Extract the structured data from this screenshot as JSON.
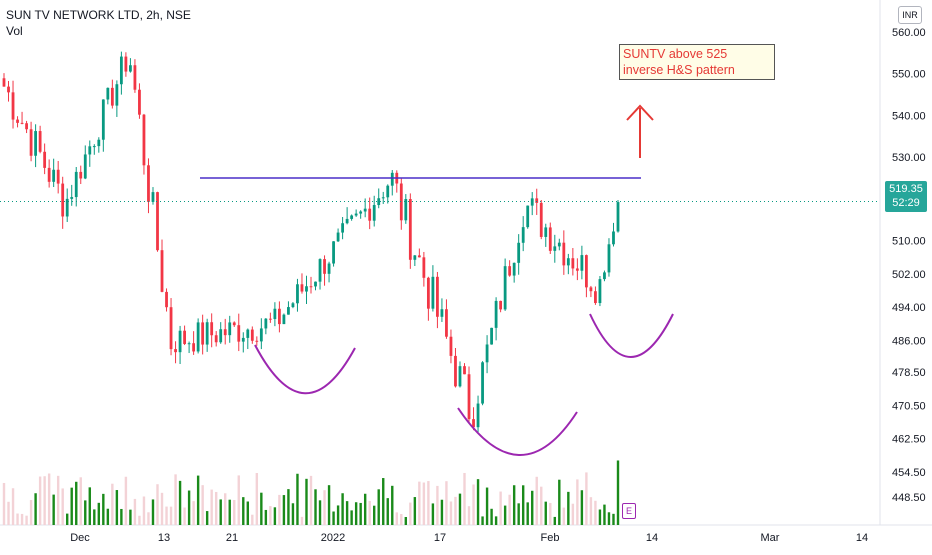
{
  "header": {
    "title": "SUN TV NETWORK LTD, 2h, NSE",
    "volume_label": "Vol",
    "currency": "INR"
  },
  "price_tag": {
    "price": "519.35",
    "countdown": "52:29"
  },
  "annotation": {
    "line1": "SUNTV above 525",
    "line2": "inverse H&S pattern",
    "neckline_price": 525
  },
  "marker": {
    "label": "E"
  },
  "colors": {
    "up": "#089981",
    "down": "#f23645",
    "volume_up": "#1a8a1a",
    "volume_down": "#f3d2d6",
    "neckline": "#4a2fc9",
    "curve": "#9c27b0",
    "arrow": "#e53935",
    "annotation_bg": "#fffde7"
  },
  "chart_data": {
    "type": "candlestick",
    "y_axis": {
      "ticks": [
        "560.00",
        "550.00",
        "540.00",
        "530.00",
        "520.00",
        "510.00",
        "502.00",
        "494.00",
        "486.00",
        "478.50",
        "470.50",
        "462.50",
        "454.50",
        "448.50"
      ]
    },
    "x_axis": {
      "ticks": [
        "Dec",
        "13",
        "21",
        "2022",
        "17",
        "Feb",
        "14",
        "Mar",
        "14"
      ]
    },
    "candles_summary": [
      {
        "seg": "early-dec",
        "start": 547,
        "end": 520,
        "noise": 5
      },
      {
        "seg": "mid-dec",
        "start": 520,
        "end": 553,
        "noise": 4
      },
      {
        "seg": "drop",
        "start": 553,
        "end": 486,
        "noise": 6
      },
      {
        "seg": "left-shoulder",
        "start": 486,
        "end": 490,
        "noise": 4
      },
      {
        "seg": "rise-2022",
        "start": 490,
        "end": 524,
        "noise": 4
      },
      {
        "seg": "head-drop",
        "start": 524,
        "end": 470,
        "noise": 6
      },
      {
        "seg": "head-rise",
        "start": 470,
        "end": 518,
        "noise": 5
      },
      {
        "seg": "right-shoulder",
        "start": 518,
        "end": 500,
        "noise": 5
      },
      {
        "seg": "breakout",
        "start": 500,
        "end": 519.35,
        "noise": 3
      }
    ],
    "last_price": 519.35
  }
}
